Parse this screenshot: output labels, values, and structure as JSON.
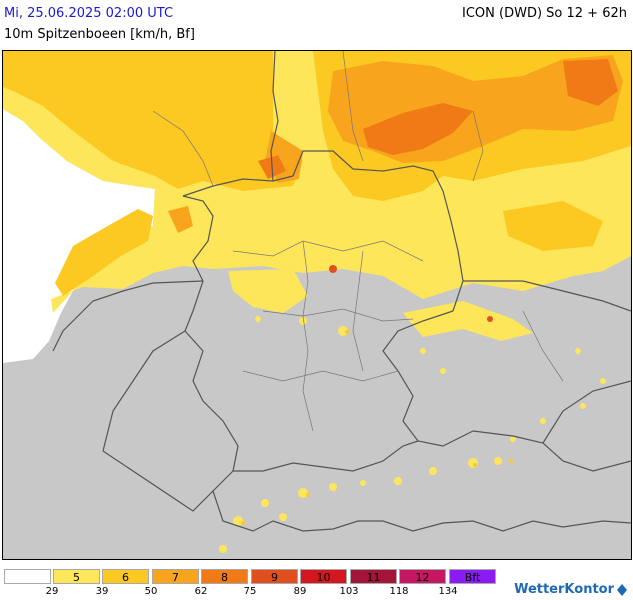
{
  "header": {
    "valid_time": "Mi, 25.06.2025 02:00 UTC",
    "model_run": "ICON (DWD) So 12 + 62h",
    "parameter": "10m Spitzenboeen [km/h, Bf]"
  },
  "legend": {
    "classes": [
      {
        "label": "",
        "color": "#ffffff"
      },
      {
        "label": "5",
        "color": "#fde65a"
      },
      {
        "label": "6",
        "color": "#fbc921"
      },
      {
        "label": "7",
        "color": "#f8a51d"
      },
      {
        "label": "8",
        "color": "#f07a16"
      },
      {
        "label": "9",
        "color": "#e0501e"
      },
      {
        "label": "10",
        "color": "#d3161f"
      },
      {
        "label": "11",
        "color": "#a4143a"
      },
      {
        "label": "12",
        "color": "#c41863"
      },
      {
        "label": "Bft",
        "color": "#8a1cf2"
      }
    ],
    "thresholds": [
      "29",
      "39",
      "50",
      "62",
      "75",
      "89",
      "103",
      "118",
      "134"
    ]
  },
  "logo": {
    "text": "WetterKontor"
  },
  "colors": {
    "land_calm": "#c8c8c8",
    "sea_calm": "#ffffff",
    "border": "#555555"
  }
}
